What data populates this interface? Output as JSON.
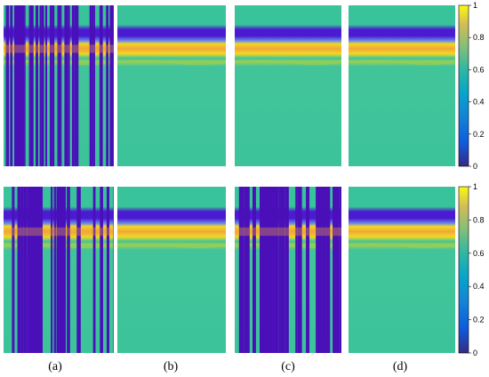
{
  "colors": {
    "low": "#4a0fb8",
    "band_dark": "#4a1bd0",
    "band_light": "#6a8ae8",
    "mid": "#3cc39a",
    "high_yellow": "#f3d820",
    "high_orange": "#f2a63a",
    "green_yellow": "#9fd04e"
  },
  "colorbar": {
    "ticks": [
      "1",
      "0.8",
      "0.6",
      "0.4",
      "0.2",
      "0"
    ]
  },
  "panel_labels": [
    "(a)",
    "(b)",
    "(c)",
    "(d)"
  ],
  "rows": [
    {
      "panels": [
        {
          "name": "row1-a",
          "corrupted": true,
          "style": "stripes-thin"
        },
        {
          "name": "row1-b",
          "corrupted": false
        },
        {
          "name": "row1-c",
          "corrupted": false
        },
        {
          "name": "row1-d",
          "corrupted": false
        }
      ]
    },
    {
      "panels": [
        {
          "name": "row2-a",
          "corrupted": true,
          "style": "stripes-dense"
        },
        {
          "name": "row2-b",
          "corrupted": false
        },
        {
          "name": "row2-c",
          "corrupted": true,
          "style": "stripes-blocks"
        },
        {
          "name": "row2-d",
          "corrupted": false
        }
      ]
    }
  ]
}
